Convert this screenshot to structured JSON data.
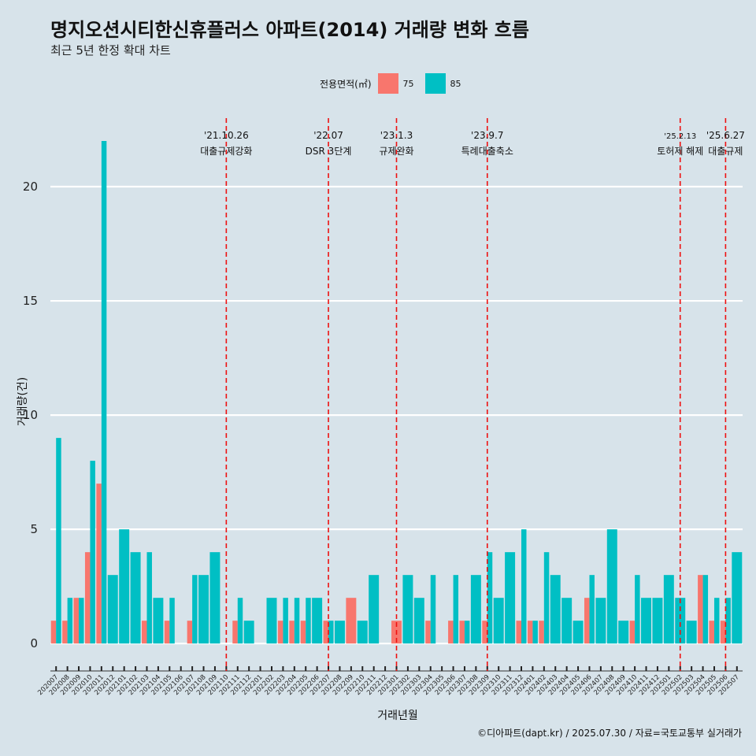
{
  "title": "명지오션시티한신휴플러스 아파트(2014) 거래량 변화 흐름",
  "subtitle": "최근 5년 한정 확대 차트",
  "legend": {
    "title": "전용면적(㎡)",
    "items": [
      {
        "label": "75",
        "color": "#F8766D"
      },
      {
        "label": "85",
        "color": "#00BFC4"
      }
    ]
  },
  "xlabel": "거래년월",
  "ylabel": "거래량(건)",
  "caption": "©디아파트(dapt.kr) / 2025.07.30 / 자료=국토교통부 실거래가",
  "chart_data": {
    "type": "bar",
    "ylim": [
      -1.2,
      23
    ],
    "yticks": [
      0,
      5,
      10,
      15,
      20
    ],
    "categories": [
      "202007",
      "202008",
      "202009",
      "202010",
      "202011",
      "202012",
      "202101",
      "202102",
      "202103",
      "202104",
      "202105",
      "202106",
      "202107",
      "202108",
      "202109",
      "202110",
      "202111",
      "202112",
      "202201",
      "202202",
      "202203",
      "202204",
      "202205",
      "202206",
      "202207",
      "202208",
      "202209",
      "202210",
      "202211",
      "202212",
      "202301",
      "202302",
      "202303",
      "202304",
      "202305",
      "202306",
      "202307",
      "202308",
      "202309",
      "202310",
      "202311",
      "202312",
      "202401",
      "202402",
      "202403",
      "202404",
      "202405",
      "202406",
      "202407",
      "202408",
      "202409",
      "202410",
      "202411",
      "202412",
      "202501",
      "202502",
      "202503",
      "202504",
      "202505",
      "202506",
      "202507"
    ],
    "series": [
      {
        "name": "75",
        "color": "#F8766D",
        "values": [
          1,
          1,
          2,
          4,
          7,
          0,
          0,
          0,
          1,
          0,
          1,
          0,
          1,
          0,
          0,
          0,
          1,
          0,
          0,
          0,
          1,
          1,
          1,
          0,
          1,
          0,
          2,
          0,
          0,
          0,
          1,
          0,
          0,
          1,
          0,
          1,
          1,
          0,
          1,
          0,
          0,
          1,
          1,
          1,
          0,
          0,
          0,
          2,
          0,
          0,
          0,
          1,
          0,
          0,
          0,
          0,
          0,
          3,
          1,
          1,
          0
        ]
      },
      {
        "name": "85",
        "color": "#00BFC4",
        "values": [
          9,
          2,
          2,
          8,
          22,
          3,
          5,
          4,
          4,
          2,
          2,
          0,
          3,
          3,
          4,
          0,
          2,
          1,
          0,
          2,
          2,
          2,
          2,
          2,
          1,
          1,
          0,
          1,
          3,
          0,
          0,
          3,
          2,
          3,
          0,
          3,
          1,
          3,
          4,
          2,
          4,
          5,
          1,
          4,
          3,
          2,
          1,
          3,
          2,
          5,
          1,
          3,
          2,
          2,
          3,
          2,
          1,
          3,
          2,
          2,
          4
        ]
      }
    ],
    "annotations": [
      {
        "x": "202110",
        "date": "'21.10.26",
        "label": "대출규제강화"
      },
      {
        "x": "202207",
        "date": "'22.07",
        "label": "DSR 3단계"
      },
      {
        "x": "202301",
        "date": "'23.1.3",
        "label": "규제완화"
      },
      {
        "x": "202309",
        "date": "'23.9.7",
        "label": "특례대출축소"
      },
      {
        "x": "202502",
        "date": "'25.2.13",
        "label": "토허제 해제"
      },
      {
        "x": "202506",
        "date": "'25.6.27",
        "label": "대출규제"
      }
    ],
    "grid": true,
    "legend_position": "top"
  }
}
